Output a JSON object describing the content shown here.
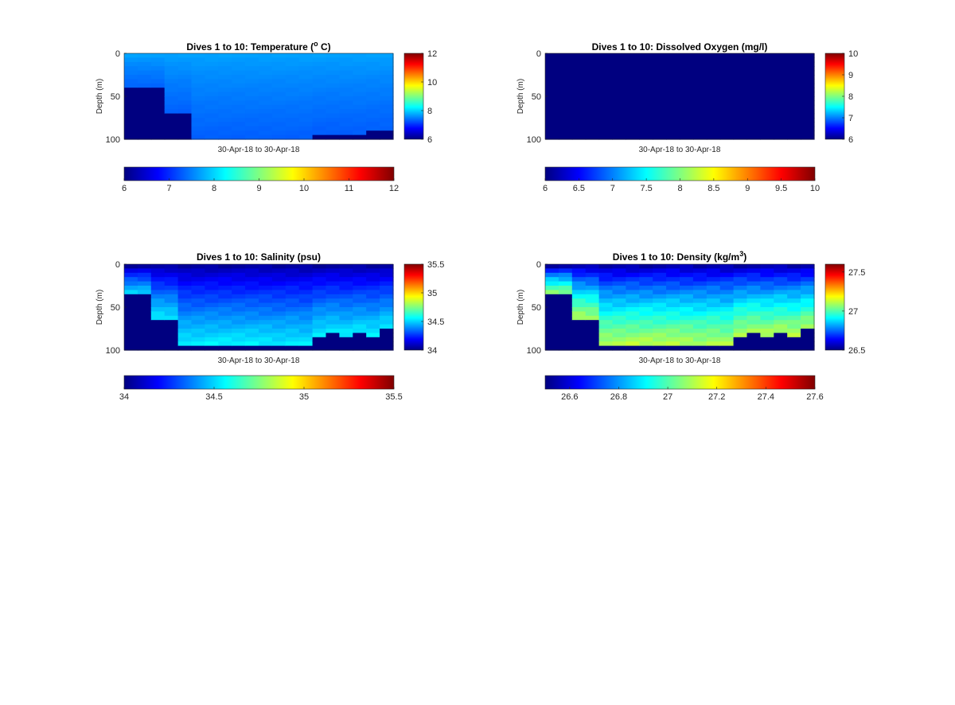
{
  "figure": {
    "background": "#ffffff",
    "colormap": "jet",
    "panels": [
      {
        "title": "Dives 1 to 10: Temperature (",
        "title_sup": "o",
        "title_tail": " C)"
      },
      {
        "title": "Dives 1 to 10: Dissolved Oxygen (mg/l)"
      },
      {
        "title": "Dives 1 to 10: Salinity (psu)"
      },
      {
        "title": "Dives 1 to 10: Density (kg/m",
        "title_sup": "3",
        "title_tail": ")"
      }
    ]
  },
  "chart_data": [
    {
      "type": "heatmap",
      "title": "Dives 1 to 10: Temperature (o C)",
      "ylabel": "Depth (m)",
      "xlabel": "30-Apr-18 to 30-Apr-18",
      "yticks": [
        "0",
        "50",
        "100"
      ],
      "ylim": [
        0,
        100
      ],
      "clim": [
        6,
        12
      ],
      "side_colorbar_ticks": [
        "6",
        "8",
        "10",
        "12"
      ],
      "bottom_colorbar_ticks": [
        "6",
        "7",
        "8",
        "9",
        "10",
        "11",
        "12"
      ],
      "profile_columns": 20,
      "bottom_depth_m": [
        40,
        40,
        40,
        70,
        70,
        99,
        99,
        98,
        98,
        98,
        98,
        98,
        98,
        98,
        91,
        91,
        91,
        91,
        89,
        89
      ],
      "surface_value": 7.7,
      "deep_value": 7.3,
      "fill_value_below_bottom": 6
    },
    {
      "type": "heatmap",
      "title": "Dives 1 to 10: Dissolved Oxygen (mg/l)",
      "ylabel": "Depth (m)",
      "xlabel": "30-Apr-18 to 30-Apr-18",
      "yticks": [
        "0",
        "50",
        "100"
      ],
      "ylim": [
        0,
        100
      ],
      "clim": [
        6,
        10
      ],
      "side_colorbar_ticks": [
        "6",
        "7",
        "8",
        "9",
        "10"
      ],
      "bottom_colorbar_ticks": [
        "6",
        "6.5",
        "7",
        "7.5",
        "8",
        "8.5",
        "9",
        "9.5",
        "10"
      ],
      "profile_columns": 20,
      "uniform_value": 6
    },
    {
      "type": "heatmap",
      "title": "Dives 1 to 10: Salinity (psu)",
      "ylabel": "Depth (m)",
      "xlabel": "30-Apr-18 to 30-Apr-18",
      "yticks": [
        "0",
        "50",
        "100"
      ],
      "ylim": [
        0,
        100
      ],
      "clim": [
        34,
        35.5
      ],
      "side_colorbar_ticks": [
        "34",
        "34.5",
        "35",
        "35.5"
      ],
      "bottom_colorbar_ticks": [
        "34",
        "34.5",
        "35",
        "35.5"
      ],
      "profile_columns": 20,
      "bottom_depth_m": [
        35,
        35,
        62,
        64,
        93,
        93,
        92,
        92,
        92,
        92,
        93,
        95,
        93,
        95,
        83,
        80,
        83,
        80,
        82,
        75
      ],
      "surface_value": 34.05,
      "deep_value": 34.55,
      "fill_value_below_bottom": 34
    },
    {
      "type": "heatmap",
      "title": "Dives 1 to 10: Density (kg/m3)",
      "ylabel": "Depth (m)",
      "xlabel": "30-Apr-18 to 30-Apr-18",
      "yticks": [
        "0",
        "50",
        "100"
      ],
      "ylim": [
        0,
        100
      ],
      "clim": [
        26.5,
        27.6
      ],
      "side_colorbar_ticks": [
        "26.5",
        "27",
        "27.5"
      ],
      "bottom_colorbar_ticks": [
        "26.6",
        "26.8",
        "27",
        "27.2",
        "27.4",
        "27.6"
      ],
      "profile_columns": 20,
      "bottom_depth_m": [
        35,
        35,
        62,
        64,
        93,
        93,
        92,
        92,
        92,
        92,
        93,
        95,
        93,
        95,
        83,
        80,
        83,
        80,
        82,
        75
      ],
      "surface_value": 26.55,
      "deep_value": 27.12,
      "fill_value_below_bottom": 26.5
    }
  ]
}
